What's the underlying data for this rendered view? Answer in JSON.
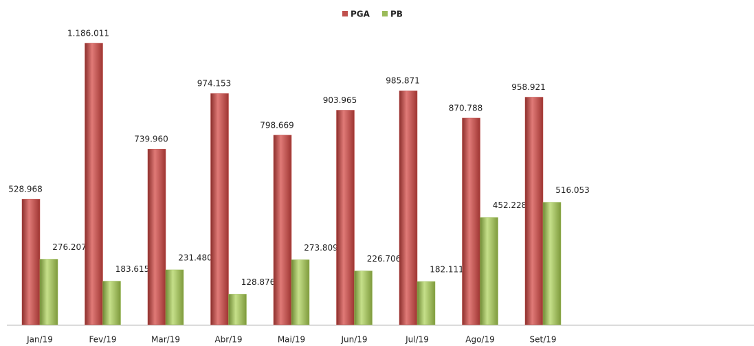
{
  "chart_data": {
    "type": "bar",
    "categories": [
      "Jan/19",
      "Fev/19",
      "Mar/19",
      "Abr/19",
      "Mai/19",
      "Jun/19",
      "Jul/19",
      "Ago/19",
      "Set/19"
    ],
    "series": [
      {
        "name": "PGA",
        "color": "#c0504d",
        "values": [
          528968,
          1186011,
          739960,
          974153,
          798669,
          903965,
          985871,
          870788,
          958921
        ],
        "value_labels": [
          "528.968",
          "1.186.011",
          "739.960",
          "974.153",
          "798.669",
          "903.965",
          "985.871",
          "870.788",
          "958.921"
        ]
      },
      {
        "name": "PB",
        "color": "#9bbb59",
        "values": [
          276207,
          183615,
          231480,
          128876,
          273809,
          226706,
          182111,
          452228,
          516053
        ],
        "value_labels": [
          "276.207",
          "183.615",
          "231.480",
          "128.876",
          "273.809",
          "226.706",
          "182.111",
          "452.228",
          "516.053"
        ]
      }
    ],
    "legend": "top"
  }
}
